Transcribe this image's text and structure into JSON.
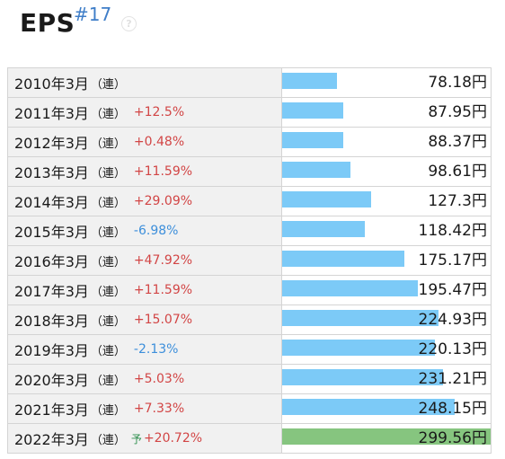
{
  "header": {
    "title": "EPS",
    "rank": "#17",
    "help_glyph": "?"
  },
  "bar_max_value": 299.56,
  "colors": {
    "bar": "#7ccaf7",
    "forecast_bar": "#86c57f",
    "positive_change": "#d24545",
    "negative_change": "#3d8fdb"
  },
  "rows": [
    {
      "period": "2010年3月",
      "type": "（連）",
      "forecast": "",
      "change": "",
      "value": "78.18円",
      "amount": 78.18
    },
    {
      "period": "2011年3月",
      "type": "（連）",
      "forecast": "",
      "change": "+12.5%",
      "value": "87.95円",
      "amount": 87.95
    },
    {
      "period": "2012年3月",
      "type": "（連）",
      "forecast": "",
      "change": "+0.48%",
      "value": "88.37円",
      "amount": 88.37
    },
    {
      "period": "2013年3月",
      "type": "（連）",
      "forecast": "",
      "change": "+11.59%",
      "value": "98.61円",
      "amount": 98.61
    },
    {
      "period": "2014年3月",
      "type": "（連）",
      "forecast": "",
      "change": "+29.09%",
      "value": "127.3円",
      "amount": 127.3
    },
    {
      "period": "2015年3月",
      "type": "（連）",
      "forecast": "",
      "change": "-6.98%",
      "value": "118.42円",
      "amount": 118.42
    },
    {
      "period": "2016年3月",
      "type": "（連）",
      "forecast": "",
      "change": "+47.92%",
      "value": "175.17円",
      "amount": 175.17
    },
    {
      "period": "2017年3月",
      "type": "（連）",
      "forecast": "",
      "change": "+11.59%",
      "value": "195.47円",
      "amount": 195.47
    },
    {
      "period": "2018年3月",
      "type": "（連）",
      "forecast": "",
      "change": "+15.07%",
      "value": "224.93円",
      "amount": 224.93
    },
    {
      "period": "2019年3月",
      "type": "（連）",
      "forecast": "",
      "change": "-2.13%",
      "value": "220.13円",
      "amount": 220.13
    },
    {
      "period": "2020年3月",
      "type": "（連）",
      "forecast": "",
      "change": "+5.03%",
      "value": "231.21円",
      "amount": 231.21
    },
    {
      "period": "2021年3月",
      "type": "（連）",
      "forecast": "",
      "change": "+7.33%",
      "value": "248.15円",
      "amount": 248.15
    },
    {
      "period": "2022年3月",
      "type": "（連）",
      "forecast": "予",
      "change": "+20.72%",
      "value": "299.56円",
      "amount": 299.56
    }
  ]
}
